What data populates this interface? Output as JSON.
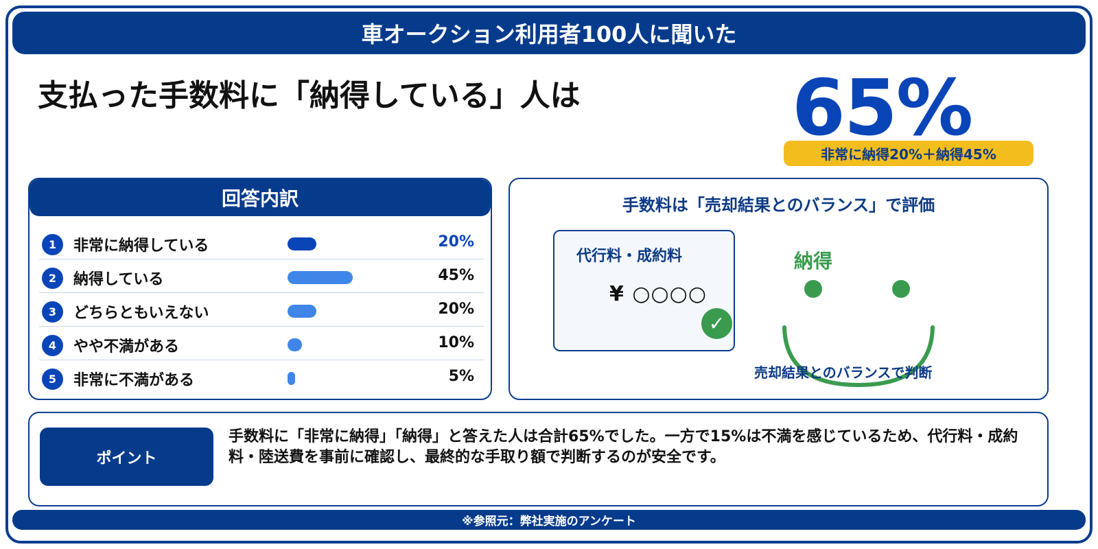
{
  "banner": {
    "title": "車オークション利用者100人に聞いた"
  },
  "headline": "支払った手数料に「納得している」人は",
  "summary": {
    "percent": "65%",
    "breakdown": "非常に納得20%＋納得45%"
  },
  "breakdown_panel": {
    "title": "回答内訳"
  },
  "chart_data": {
    "type": "bar",
    "orientation": "horizontal",
    "title": "回答内訳",
    "categories": [
      "非常に納得している",
      "納得している",
      "どちらともいえない",
      "やや不満がある",
      "非常に不満がある"
    ],
    "index_labels": [
      "1",
      "2",
      "3",
      "4",
      "5"
    ],
    "values": [
      20,
      45,
      20,
      10,
      5
    ],
    "value_labels": [
      "20%",
      "45%",
      "20%",
      "10%",
      "5%"
    ],
    "unit": "%",
    "xlim": [
      0,
      100
    ],
    "highlight_color": "#0a45b8",
    "bar_color": "#3f86e8"
  },
  "balance_panel": {
    "title": "手数料は「売却結果とのバランス」で評価",
    "fee_card_title": "代行料・成約料",
    "fee_card_amount": "¥ ○○○○",
    "check_glyph": "✓",
    "satisfied_label": "納得",
    "caption": "売却結果とのバランスで判断"
  },
  "point": {
    "badge": "ポイント",
    "text": "手数料に「非常に納得」「納得」と答えた人は合計65%でした。一方で15%は不満を感じているため、代行料・成約料・陸送費を事前に確認し、最終的な手取り額で判断するのが安全です。"
  },
  "footer": {
    "source": "※参照元：弊社実施のアンケート"
  },
  "colors": {
    "navy": "#063b8c",
    "blue": "#0a45b8",
    "light_blue": "#3f86e8",
    "yellow": "#f3bd1e",
    "green": "#3a9b4f"
  },
  "icons": {
    "check": "check-icon",
    "smile": "smiley-face-icon"
  }
}
